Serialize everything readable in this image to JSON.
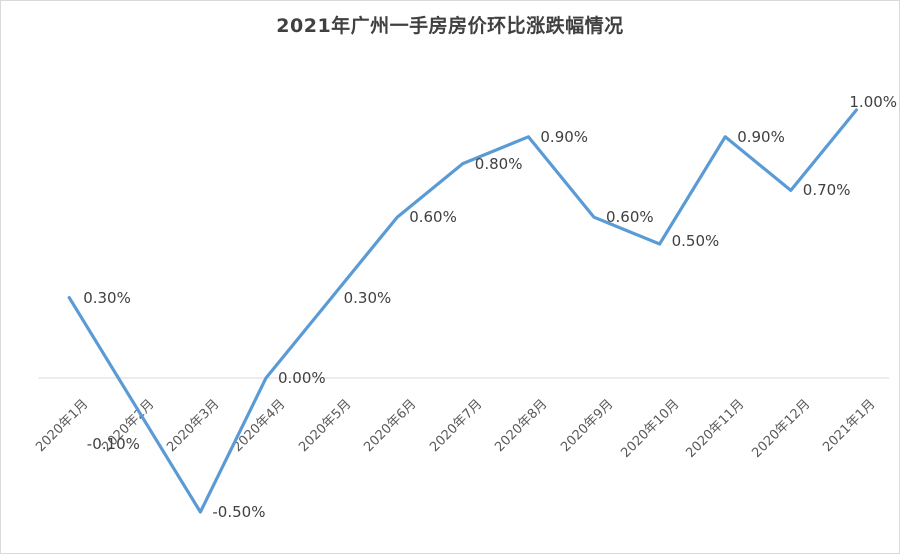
{
  "chart_data": {
    "type": "line",
    "title": "2021年广州一手房房价环比涨跌幅情况",
    "categories": [
      "2020年1月",
      "2020年2月",
      "2020年3月",
      "2020年4月",
      "2020年5月",
      "2020年6月",
      "2020年7月",
      "2020年8月",
      "2020年9月",
      "2020年10月",
      "2020年11月",
      "2020年12月",
      "2021年1月"
    ],
    "values": [
      0.3,
      -0.1,
      -0.5,
      0.0,
      0.3,
      0.6,
      0.8,
      0.9,
      0.6,
      0.5,
      0.9,
      0.7,
      1.0
    ],
    "point_labels": [
      "0.30%",
      "-0.10%",
      "-0.50%",
      "0.00%",
      "0.30%",
      "0.60%",
      "0.80%",
      "0.90%",
      "0.60%",
      "0.50%",
      "0.90%",
      "0.70%",
      "1.00%"
    ],
    "unit": "%",
    "xlabel": "",
    "ylabel": "",
    "ylim": [
      -0.7,
      1.15
    ],
    "grid": "zero-line-only",
    "legend": "none",
    "line_color": "#5B9BD5",
    "data_label_color": "#404040",
    "axis_label_color": "#595959",
    "gridline_color": "#D9D9D9",
    "frame_border_color": "#D9D9D9",
    "background_color": "#FFFFFF"
  }
}
